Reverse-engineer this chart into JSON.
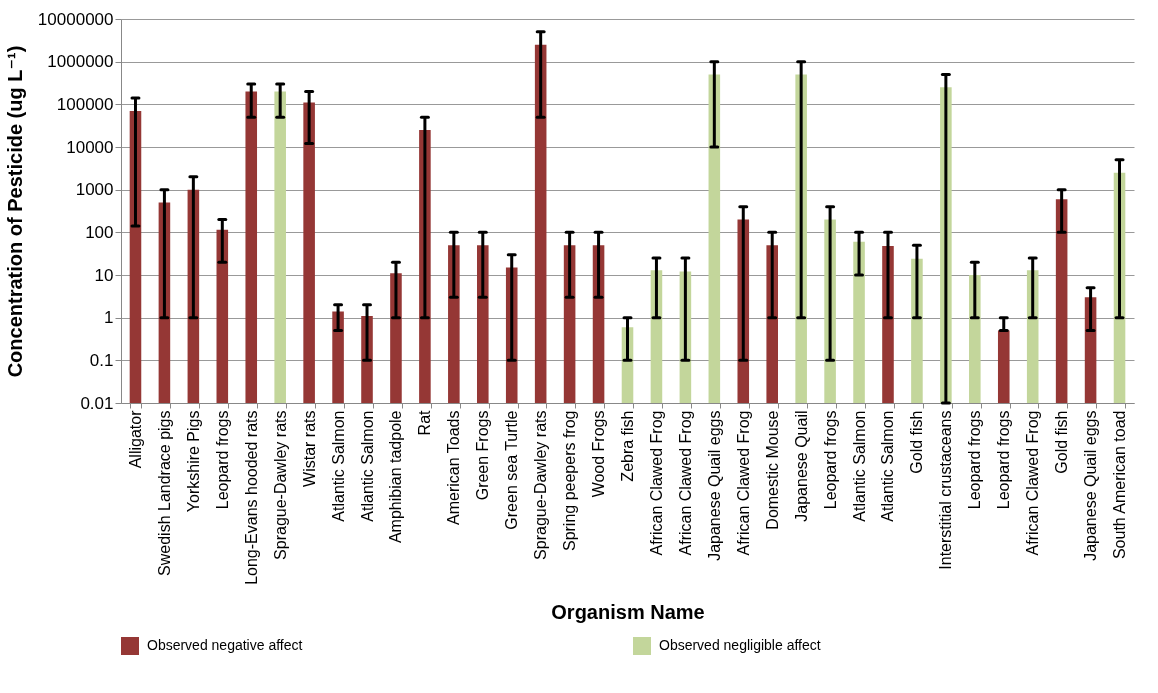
{
  "chart_data": {
    "type": "bar",
    "xlabel": "Organism Name",
    "ylabel": "Concentration of Pesticide (ug L⁻¹)",
    "categories": [
      "Alligator",
      "Swedish Landrace pigs",
      "Yorkshire Pigs",
      "Leopard frogs",
      "Long-Evans hooded rats",
      "Sprague-Dawley rats",
      "Wistar rats",
      "Atlantic Salmon",
      "Atlantic Salmon",
      "Amphibian tadpole",
      "Rat",
      "American Toads",
      "Green Frogs",
      "Green sea Turtle",
      "Sprague-Dawley rats",
      "Spring peepers frog",
      "Wood Frogs",
      "Zebra fish",
      "African Clawed Frog",
      "African Clawed Frog",
      "Japanese Quail eggs",
      "African Clawed Frog",
      "Domestic Mouse",
      "Japanese Quail",
      "Leopard frogs",
      "Atlantic Salmon",
      "Atlantic Salmon",
      "Gold fish",
      "Interstitial crustaceans",
      "Leopard frogs",
      "Leopard frogs",
      "African Clawed Frog",
      "Gold fish",
      "Japanese Quail eggs",
      "South American toad"
    ],
    "series": [
      {
        "name": "Observed negative affect",
        "color": "#953735",
        "values": [
          70000,
          500,
          1000,
          115,
          200000,
          null,
          110000,
          1.4,
          1.1,
          11,
          25000,
          50,
          50,
          15,
          2500000,
          50,
          50,
          null,
          null,
          null,
          null,
          200,
          50,
          null,
          null,
          null,
          48,
          null,
          null,
          null,
          0.5,
          null,
          600,
          3,
          null
        ],
        "errors": [
          [
            140,
            140000
          ],
          [
            1,
            1000
          ],
          [
            1,
            2000
          ],
          [
            20,
            200
          ],
          [
            50000,
            300000
          ],
          null,
          [
            12000,
            200000
          ],
          [
            0.5,
            2
          ],
          [
            0.1,
            2
          ],
          [
            1,
            20
          ],
          [
            1,
            50000
          ],
          [
            3,
            100
          ],
          [
            3,
            100
          ],
          [
            0.1,
            30
          ],
          [
            50000,
            5000000
          ],
          [
            3,
            100
          ],
          [
            3,
            100
          ],
          null,
          null,
          null,
          null,
          [
            0.1,
            400
          ],
          [
            1,
            100
          ],
          null,
          null,
          null,
          [
            1,
            100
          ],
          null,
          null,
          null,
          [
            0.5,
            1
          ],
          null,
          [
            100,
            1000
          ],
          [
            0.5,
            5
          ],
          null
        ]
      },
      {
        "name": "Observed negligible affect",
        "color": "#c3d69b",
        "values": [
          null,
          null,
          null,
          null,
          null,
          200000,
          null,
          null,
          null,
          null,
          null,
          null,
          null,
          null,
          null,
          null,
          null,
          0.6,
          13,
          12,
          500000,
          null,
          null,
          500000,
          200,
          60,
          null,
          24,
          250000,
          10,
          null,
          13,
          null,
          null,
          2500
        ],
        "errors": [
          null,
          null,
          null,
          null,
          null,
          [
            50000,
            300000
          ],
          null,
          null,
          null,
          null,
          null,
          null,
          null,
          null,
          null,
          null,
          null,
          [
            0.1,
            1
          ],
          [
            1,
            25
          ],
          [
            0.1,
            25
          ],
          [
            10000,
            1000000
          ],
          null,
          null,
          [
            1,
            1000000
          ],
          [
            0.1,
            400
          ],
          [
            10,
            100
          ],
          null,
          [
            1,
            50
          ],
          [
            0.01,
            500000
          ],
          [
            1,
            20
          ],
          null,
          [
            1,
            25
          ],
          null,
          null,
          [
            1,
            5000
          ]
        ]
      }
    ],
    "log": true,
    "ylim": [
      0.01,
      10000000
    ],
    "yticks": [
      0.01,
      0.1,
      1,
      10,
      100,
      1000,
      10000,
      100000,
      1000000,
      10000000
    ],
    "grid": "y",
    "legend": "bottom"
  }
}
